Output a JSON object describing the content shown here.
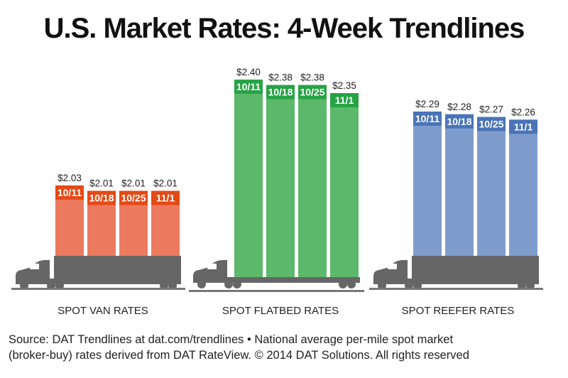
{
  "chart_data": {
    "type": "bar",
    "title": "U.S. Market Rates: 4-Week Trendlines",
    "categories": [
      "10/11",
      "10/18",
      "10/25",
      "11/1"
    ],
    "groups": [
      {
        "name": "SPOT VAN RATES",
        "values": [
          2.03,
          2.01,
          2.01,
          2.01
        ],
        "labels": [
          "$2.03",
          "$2.01",
          "$2.01",
          "$2.01"
        ],
        "color": "#ec7a5f",
        "band_color": "#e44a16",
        "truck": "van"
      },
      {
        "name": "SPOT FLATBED RATES",
        "values": [
          2.4,
          2.38,
          2.38,
          2.35
        ],
        "labels": [
          "$2.40",
          "$2.38",
          "$2.38",
          "$2.35"
        ],
        "color": "#5cb86a",
        "band_color": "#27a346",
        "truck": "flatbed"
      },
      {
        "name": "SPOT REEFER RATES",
        "values": [
          2.29,
          2.28,
          2.27,
          2.26
        ],
        "labels": [
          "$2.29",
          "$2.28",
          "$2.27",
          "$2.26"
        ],
        "color": "#7f9dcc",
        "band_color": "#4a74b8",
        "truck": "reefer"
      }
    ],
    "truck_color": "#666666"
  },
  "source": {
    "line1": "Source: DAT Trendlines at dat.com/trendlines • National average per-mile spot market",
    "line2": "(broker-buy) rates derived from DAT RateView. © 2014 DAT Solutions. All rights reserved"
  }
}
